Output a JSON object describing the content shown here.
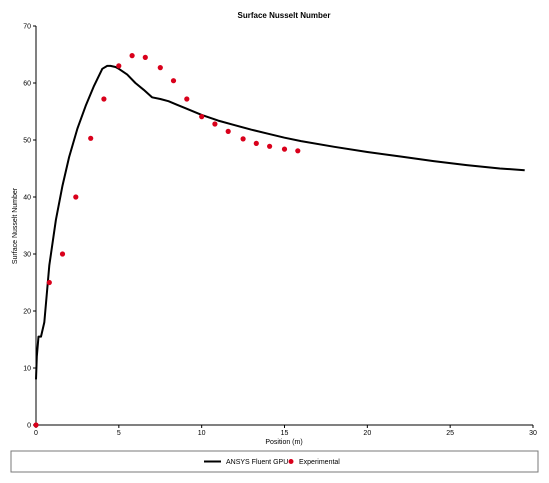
{
  "chart_data": {
    "type": "line",
    "title": "Surface Nusselt Number",
    "xlabel": "Position (m)",
    "ylabel": "Surface Nusselt Number",
    "xlim": [
      0,
      30
    ],
    "ylim": [
      0,
      70
    ],
    "xticks": [
      0,
      5,
      10,
      15,
      20,
      25,
      30
    ],
    "yticks": [
      0,
      10,
      20,
      30,
      40,
      50,
      60,
      70
    ],
    "grid": false,
    "legend_position": "bottom",
    "series": [
      {
        "name": "ANSYS Fluent GPU",
        "style": "line",
        "color": "#000000",
        "x": [
          0,
          0.05,
          0.15,
          0.3,
          0.5,
          0.8,
          1.2,
          1.6,
          2.0,
          2.5,
          3.0,
          3.5,
          4.0,
          4.3,
          4.5,
          4.8,
          5.0,
          5.5,
          6.0,
          6.5,
          7.0,
          7.5,
          8.0,
          8.5,
          9.0,
          10,
          11,
          12,
          13,
          14,
          15,
          16,
          18,
          20,
          22,
          24,
          26,
          28,
          29.5
        ],
        "y": [
          8,
          12,
          15.5,
          15.5,
          18,
          28,
          36,
          42,
          47,
          52,
          56,
          59.5,
          62.5,
          63,
          63,
          62.8,
          62.5,
          61.5,
          60,
          58.8,
          57.5,
          57.2,
          56.8,
          56.2,
          55.6,
          54.4,
          53.4,
          52.6,
          51.8,
          51.1,
          50.4,
          49.8,
          48.8,
          47.9,
          47.1,
          46.3,
          45.6,
          45.0,
          44.7
        ]
      },
      {
        "name": "Experimental",
        "style": "scatter",
        "color": "#d9001b",
        "x": [
          0,
          0.8,
          1.6,
          2.4,
          3.3,
          4.1,
          5.0,
          5.8,
          6.6,
          7.5,
          8.3,
          9.1,
          10.0,
          10.8,
          11.6,
          12.5,
          13.3,
          14.1,
          15.0,
          15.8
        ],
        "y": [
          0,
          25,
          30,
          40,
          50.3,
          57.2,
          63,
          64.8,
          64.5,
          62.7,
          60.4,
          57.2,
          54.1,
          52.8,
          51.5,
          50.2,
          49.4,
          48.9,
          48.4,
          48.1
        ]
      }
    ]
  }
}
